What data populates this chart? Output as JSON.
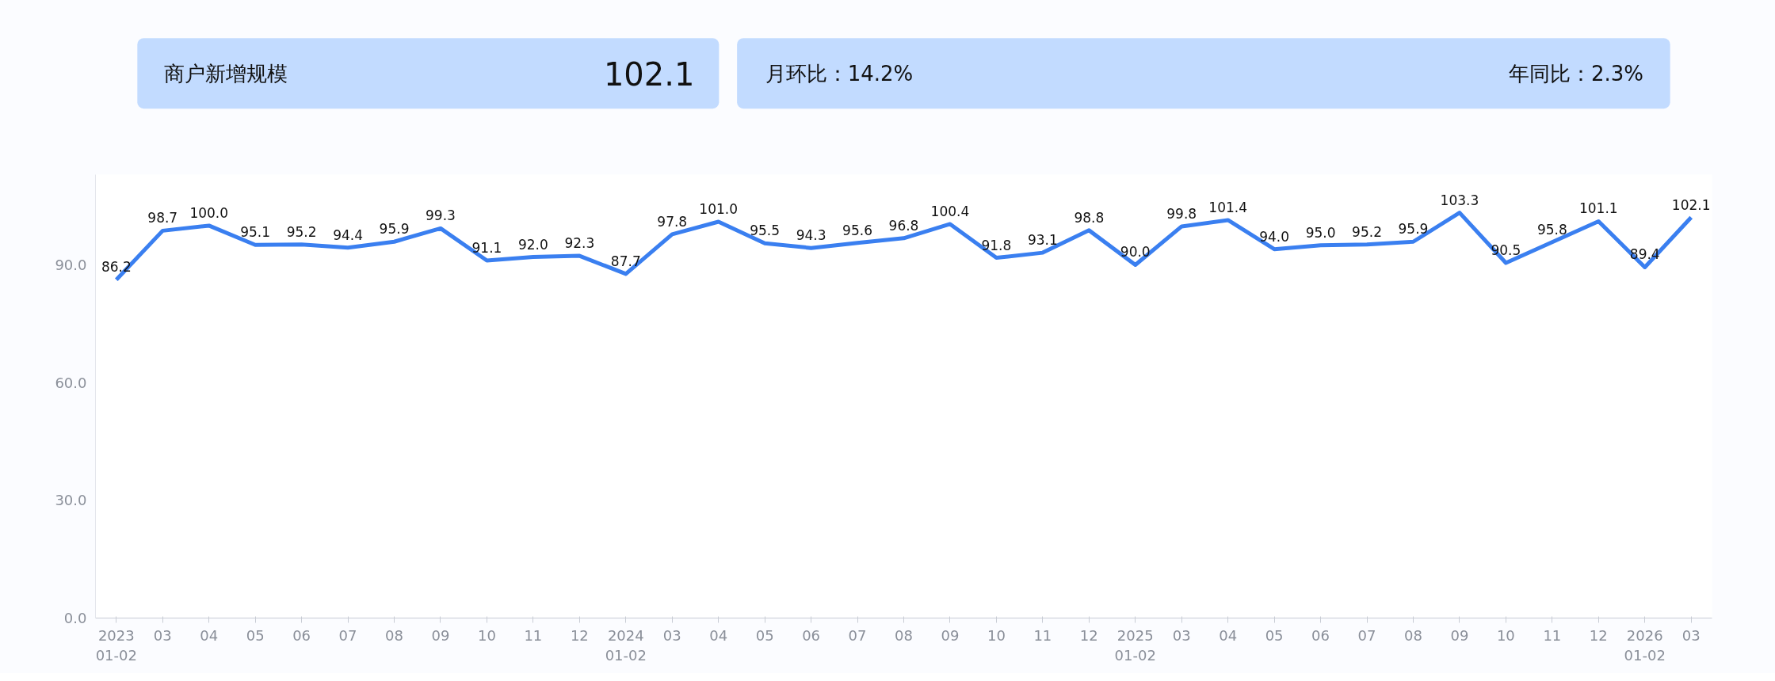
{
  "chart_data": [
    {
      "type": "other",
      "annotations": [
        "商户新增规模",
        "102.1",
        "月环比：14.2%",
        "年同比：2.3%"
      ]
    },
    {
      "type": "line",
      "categories": [
        "2023\n01-02",
        "03",
        "04",
        "05",
        "06",
        "07",
        "08",
        "09",
        "10",
        "11",
        "12",
        "2024\n01-02",
        "03",
        "04",
        "05",
        "06",
        "07",
        "08",
        "09",
        "10",
        "11",
        "12",
        "2025\n01-02",
        "03",
        "04",
        "05",
        "06",
        "07",
        "08",
        "09",
        "10",
        "11",
        "12",
        "2026\n01-02",
        "03"
      ],
      "series": [
        {
          "color": "#3a7ff0",
          "value_labels": [
            "86.2",
            "98.7",
            "100.0",
            "95.1",
            "95.2",
            "94.4",
            "95.9",
            "99.3",
            "91.1",
            "92.0",
            "92.3",
            "87.7",
            "97.8",
            "101.0",
            "95.5",
            "94.3",
            "95.6",
            "96.8",
            "100.4",
            "91.8",
            "93.1",
            "98.8",
            "90.0",
            "99.8",
            "101.4",
            "94.0",
            "95.0",
            "95.2",
            "95.9",
            "103.3",
            "90.5",
            "95.8",
            "101.1",
            "89.4",
            "102.1"
          ],
          "values": [
            86.2,
            98.7,
            100.0,
            95.1,
            95.2,
            94.4,
            95.9,
            99.3,
            91.1,
            92.0,
            92.3,
            87.7,
            97.8,
            101.0,
            95.5,
            94.3,
            95.6,
            96.8,
            100.4,
            91.8,
            93.1,
            98.8,
            90.0,
            99.8,
            101.4,
            94.0,
            95.0,
            95.2,
            95.9,
            103.3,
            90.5,
            95.8,
            101.1,
            89.4,
            102.1
          ]
        }
      ],
      "ylim": [
        0,
        113
      ],
      "yticks": [
        {
          "value": 0,
          "label": "0.0"
        },
        {
          "value": 30,
          "label": "30.0"
        },
        {
          "value": 60,
          "label": "60.0"
        },
        {
          "value": 90,
          "label": "90.0"
        }
      ],
      "grid": false,
      "marker": "none",
      "line_style": "solid"
    }
  ]
}
